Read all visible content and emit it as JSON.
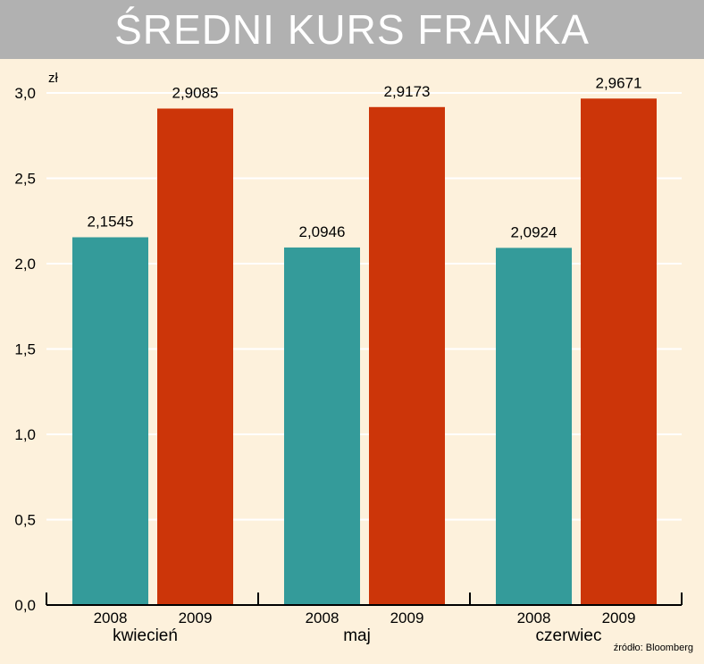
{
  "chart_data": {
    "type": "bar",
    "title": "ŚREDNI KURS FRANKA",
    "unit_label": "zł",
    "categories": [
      "kwiecień",
      "maj",
      "czerwiec"
    ],
    "series": [
      {
        "name": "2008",
        "values": [
          2.1545,
          2.0946,
          2.0924
        ],
        "labels": [
          "2,1545",
          "2,0946",
          "2,0924"
        ],
        "color": "#349b9a"
      },
      {
        "name": "2009",
        "values": [
          2.9085,
          2.9173,
          2.9671
        ],
        "labels": [
          "2,9085",
          "2,9173",
          "2,9671"
        ],
        "color": "#cc3509"
      }
    ],
    "ylim": [
      0,
      3.0
    ],
    "yticks": [
      0,
      0.5,
      1.0,
      1.5,
      2.0,
      2.5,
      3.0
    ],
    "ytick_labels": [
      "0,0",
      "0,5",
      "1,0",
      "1,5",
      "2,0",
      "2,5",
      "3,0"
    ],
    "grid": true,
    "source": "źródło: Bloomberg"
  }
}
